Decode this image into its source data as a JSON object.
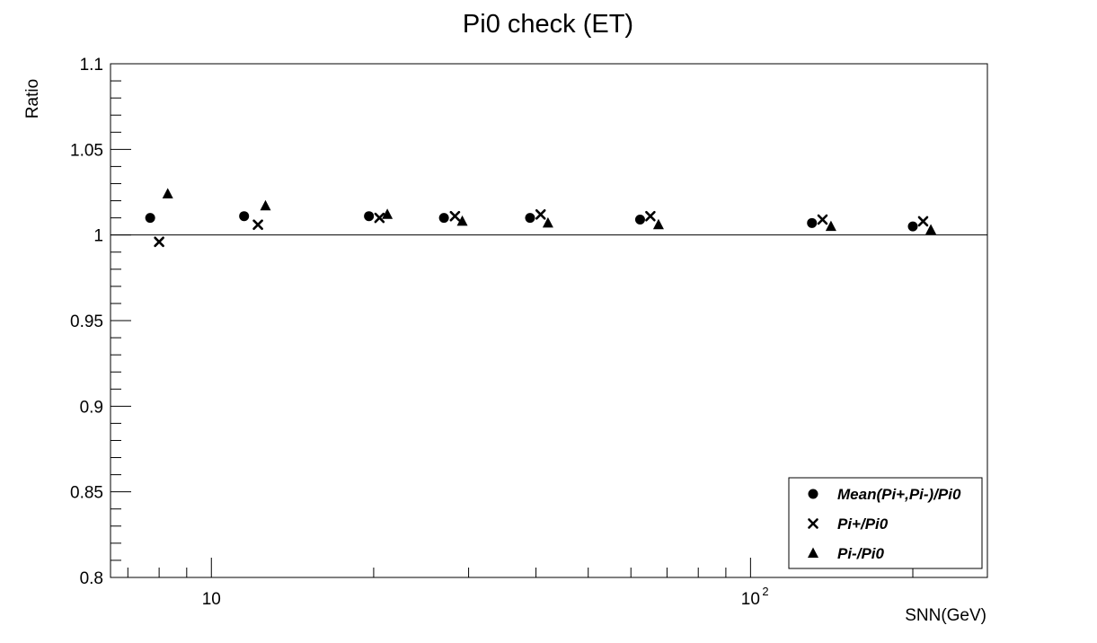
{
  "chart_data": {
    "type": "scatter",
    "title": "Pi0 check (ET)",
    "xlabel": "SNN(GeV)",
    "ylabel": "Ratio",
    "x_scale": "log",
    "xlim": [
      6.5,
      275
    ],
    "ylim": [
      0.8,
      1.1
    ],
    "y_ticks": [
      "0.8",
      "0.85",
      "0.9",
      "0.95",
      "1",
      "1.05",
      "1.1"
    ],
    "x_tick_labels": [
      {
        "value": 10,
        "base": "10",
        "exp": ""
      },
      {
        "value": 100,
        "base": "10",
        "exp": "2"
      }
    ],
    "reference_line": 1.0,
    "grid": false,
    "legend_position": "bottom-right",
    "series": [
      {
        "name": "Mean(Pi+,Pi-)/Pi0",
        "marker": "circle",
        "x": [
          7.7,
          11.5,
          19.6,
          27,
          39,
          62.4,
          130,
          200
        ],
        "y": [
          1.01,
          1.011,
          1.011,
          1.01,
          1.01,
          1.009,
          1.007,
          1.005
        ]
      },
      {
        "name": "Pi+/Pi0",
        "marker": "cross",
        "x": [
          8.0,
          12.2,
          20.5,
          28.3,
          40.8,
          65.2,
          136,
          209
        ],
        "y": [
          0.996,
          1.006,
          1.01,
          1.011,
          1.012,
          1.011,
          1.009,
          1.008
        ]
      },
      {
        "name": "Pi-/Pi0",
        "marker": "triangle",
        "x": [
          8.3,
          12.6,
          21.2,
          29.2,
          42.1,
          67.5,
          141,
          216
        ],
        "y": [
          1.024,
          1.017,
          1.012,
          1.008,
          1.007,
          1.006,
          1.005,
          1.003
        ]
      }
    ]
  }
}
